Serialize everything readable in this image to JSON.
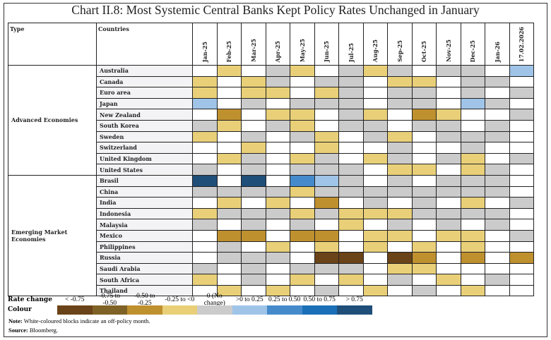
{
  "title": "Chart II.8: Most Systemic Central Banks Kept Policy Rates Unchanged in January",
  "chart_data": {
    "type": "heatmap",
    "title": "Chart II.8: Most Systemic Central Banks Kept Policy Rates Unchanged in January",
    "header_type": "Type",
    "header_countries": "Countries",
    "columns": [
      "Jan-25",
      "Feb-25",
      "Mar-25",
      "Apr-25",
      "May-25",
      "Jun-25",
      "Jul-25",
      "Aug-25",
      "Sep-25",
      "Oct-25",
      "Nov-25",
      "Dec-25",
      "Jan-26",
      "17.02.2026"
    ],
    "legend_title": "Rate change",
    "legend_colour_label": "Colour",
    "legend": [
      {
        "label": "< -0.75",
        "color": "#6b4318"
      },
      {
        "label": "-0.75 to -0.50",
        "color": "#7f6226"
      },
      {
        "label": "-0.50 to -0.25",
        "color": "#bf902e"
      },
      {
        "label": "-0.25 to <0",
        "color": "#e9d078"
      },
      {
        "label": "0  (No change)",
        "color": "#cccbcc"
      },
      {
        "label": ">0 to 0.25",
        "color": "#9fc4e8"
      },
      {
        "label": "0.25 to 0.50",
        "color": "#458bcb"
      },
      {
        "label": "0.50 to 0.75",
        "color": "#1a6fb8"
      },
      {
        "label": "> 0.75",
        "color": "#1f4e79"
      }
    ],
    "off_policy_color": "#ffffff",
    "groups": [
      {
        "type": "Advanced Economies",
        "rows": [
          {
            "country": "Australia",
            "values": [
              null,
              3,
              null,
              4,
              3,
              null,
              4,
              3,
              4,
              null,
              4,
              4,
              null,
              5
            ]
          },
          {
            "country": "Canada",
            "values": [
              3,
              null,
              3,
              4,
              null,
              4,
              4,
              null,
              3,
              3,
              null,
              4,
              4,
              null
            ]
          },
          {
            "country": "Euro area",
            "values": [
              3,
              null,
              3,
              3,
              null,
              3,
              4,
              null,
              4,
              4,
              null,
              4,
              null,
              4
            ]
          },
          {
            "country": "Japan",
            "values": [
              5,
              null,
              4,
              null,
              4,
              4,
              4,
              null,
              4,
              4,
              null,
              5,
              4,
              null
            ]
          },
          {
            "country": "New Zealand",
            "values": [
              null,
              2,
              null,
              3,
              3,
              null,
              4,
              3,
              null,
              2,
              3,
              null,
              null,
              4
            ]
          },
          {
            "country": "South Korea",
            "values": [
              4,
              3,
              null,
              4,
              3,
              null,
              4,
              4,
              null,
              4,
              4,
              null,
              4,
              null
            ]
          },
          {
            "country": "Sweden",
            "values": [
              3,
              null,
              4,
              null,
              4,
              3,
              null,
              4,
              3,
              null,
              4,
              4,
              4,
              null
            ]
          },
          {
            "country": "Switzerland",
            "values": [
              null,
              null,
              3,
              null,
              null,
              3,
              null,
              null,
              4,
              null,
              null,
              4,
              null,
              null
            ]
          },
          {
            "country": "United Kingdom",
            "values": [
              null,
              3,
              4,
              null,
              3,
              4,
              null,
              3,
              4,
              null,
              4,
              3,
              null,
              4
            ]
          },
          {
            "country": "United States",
            "values": [
              4,
              null,
              4,
              null,
              4,
              4,
              4,
              null,
              3,
              3,
              null,
              3,
              4,
              null
            ]
          }
        ]
      },
      {
        "type": "Emerging Market Economies",
        "rows": [
          {
            "country": "Brasil",
            "values": [
              8,
              null,
              8,
              null,
              6,
              5,
              4,
              null,
              4,
              null,
              4,
              4,
              4,
              null
            ]
          },
          {
            "country": "China",
            "values": [
              4,
              4,
              4,
              4,
              3,
              4,
              4,
              4,
              4,
              4,
              4,
              4,
              4,
              null
            ]
          },
          {
            "country": "India",
            "values": [
              null,
              3,
              null,
              3,
              null,
              2,
              null,
              4,
              null,
              4,
              null,
              3,
              null,
              4
            ]
          },
          {
            "country": "Indonesia",
            "values": [
              3,
              4,
              4,
              4,
              3,
              4,
              3,
              3,
              3,
              4,
              4,
              4,
              4,
              null
            ]
          },
          {
            "country": "Malaysia",
            "values": [
              4,
              null,
              4,
              null,
              4,
              null,
              3,
              null,
              4,
              null,
              4,
              null,
              4,
              null
            ]
          },
          {
            "country": "Mexico",
            "values": [
              null,
              2,
              2,
              null,
              2,
              2,
              null,
              3,
              3,
              null,
              3,
              3,
              null,
              4
            ]
          },
          {
            "country": "Philippines",
            "values": [
              null,
              4,
              null,
              3,
              null,
              3,
              null,
              3,
              null,
              3,
              null,
              3,
              null,
              null
            ]
          },
          {
            "country": "Russia",
            "values": [
              null,
              4,
              4,
              4,
              null,
              0,
              0,
              null,
              0,
              2,
              null,
              2,
              null,
              2
            ]
          },
          {
            "country": "Saudi Arabia",
            "values": [
              4,
              null,
              4,
              null,
              4,
              4,
              4,
              null,
              3,
              3,
              null,
              null,
              null,
              null
            ]
          },
          {
            "country": "South Africa",
            "values": [
              3,
              null,
              4,
              null,
              3,
              null,
              3,
              null,
              4,
              null,
              3,
              null,
              4,
              null
            ]
          },
          {
            "country": "Thailand",
            "values": [
              null,
              3,
              null,
              3,
              null,
              4,
              null,
              3,
              null,
              4,
              null,
              3,
              null,
              null
            ]
          }
        ]
      }
    ]
  },
  "note_label": "Note:",
  "note": " White-coloured blocks indicate an off-policy month.",
  "source_label": "Source:",
  "source": " Bloomberg."
}
